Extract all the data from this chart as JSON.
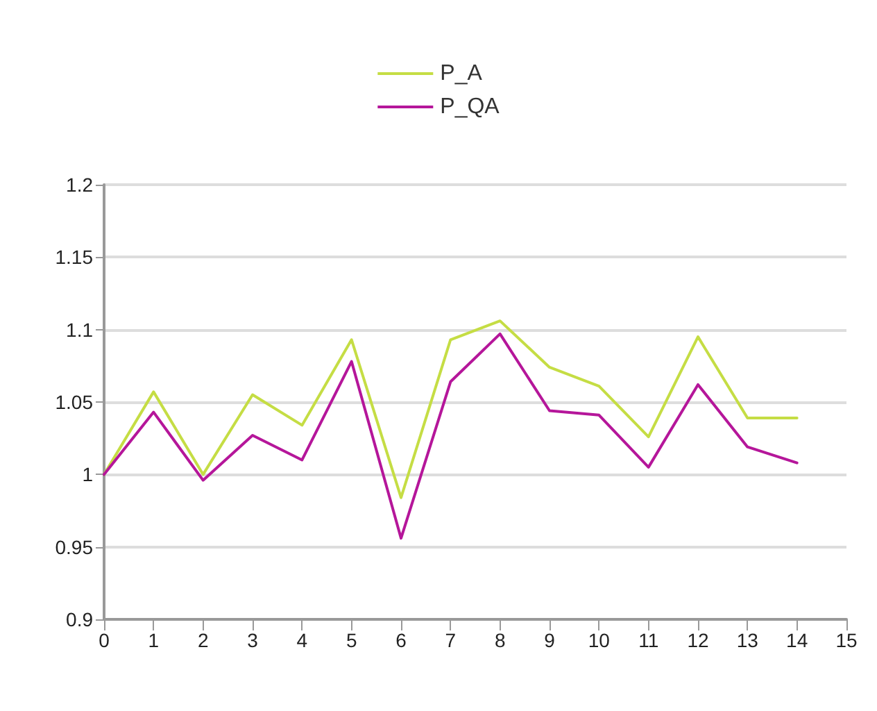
{
  "chart_data": {
    "type": "line",
    "x": [
      0,
      1,
      2,
      3,
      4,
      5,
      6,
      7,
      8,
      9,
      10,
      11,
      12,
      13,
      14
    ],
    "series": [
      {
        "name": "P_A",
        "color": "#c5dd44",
        "values": [
          1.0,
          1.057,
          1.0,
          1.055,
          1.034,
          1.093,
          0.984,
          1.093,
          1.106,
          1.074,
          1.061,
          1.026,
          1.095,
          1.039,
          1.039
        ]
      },
      {
        "name": "P_QA",
        "color": "#b5169a",
        "values": [
          1.0,
          1.043,
          0.996,
          1.027,
          1.01,
          1.078,
          0.956,
          1.064,
          1.097,
          1.044,
          1.041,
          1.005,
          1.062,
          1.019,
          1.008
        ]
      }
    ],
    "xlim": [
      0,
      15
    ],
    "xticks": [
      0,
      1,
      2,
      3,
      4,
      5,
      6,
      7,
      8,
      9,
      10,
      11,
      12,
      13,
      14,
      15
    ],
    "ylim": [
      0.9,
      1.2
    ],
    "yticks": [
      0.9,
      0.95,
      1,
      1.05,
      1.1,
      1.15,
      1.2
    ],
    "grid": "y",
    "legend": "top",
    "marker": "none",
    "line_style": "solid"
  }
}
